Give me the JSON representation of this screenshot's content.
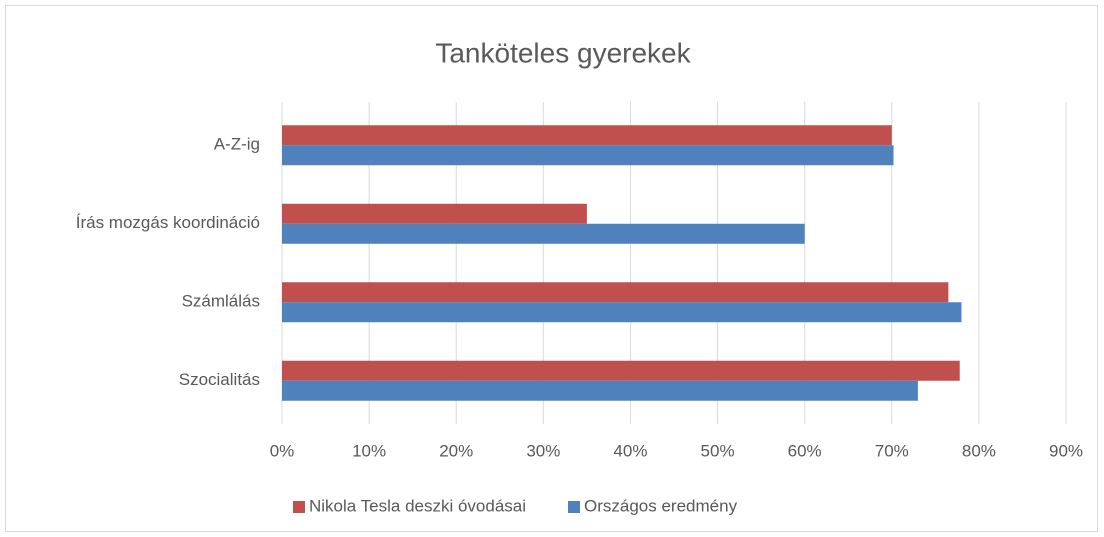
{
  "chart_data": {
    "type": "bar",
    "orientation": "horizontal",
    "title": "Tanköteles gyerekek",
    "categories": [
      "A-Z-ig",
      "Írás mozgás koordináció",
      "Számlálás",
      "Szocialitás"
    ],
    "series": [
      {
        "name": "Nikola Tesla deszki óvodásai",
        "color": "#c0504d",
        "values": [
          70,
          35,
          76.5,
          77.8
        ]
      },
      {
        "name": "Országos eredmény",
        "color": "#4f81bd",
        "values": [
          70.2,
          60,
          78,
          73
        ]
      }
    ],
    "xlim": [
      0,
      90
    ],
    "xticks": [
      {
        "value": 0,
        "label": "0%"
      },
      {
        "value": 10,
        "label": "10%"
      },
      {
        "value": 20,
        "label": "20%"
      },
      {
        "value": 30,
        "label": "30%"
      },
      {
        "value": 40,
        "label": "40%"
      },
      {
        "value": 50,
        "label": "50%"
      },
      {
        "value": 60,
        "label": "60%"
      },
      {
        "value": 70,
        "label": "70%"
      },
      {
        "value": 80,
        "label": "80%"
      },
      {
        "value": 90,
        "label": "90%"
      }
    ],
    "grid": true,
    "legend": "bottom"
  }
}
